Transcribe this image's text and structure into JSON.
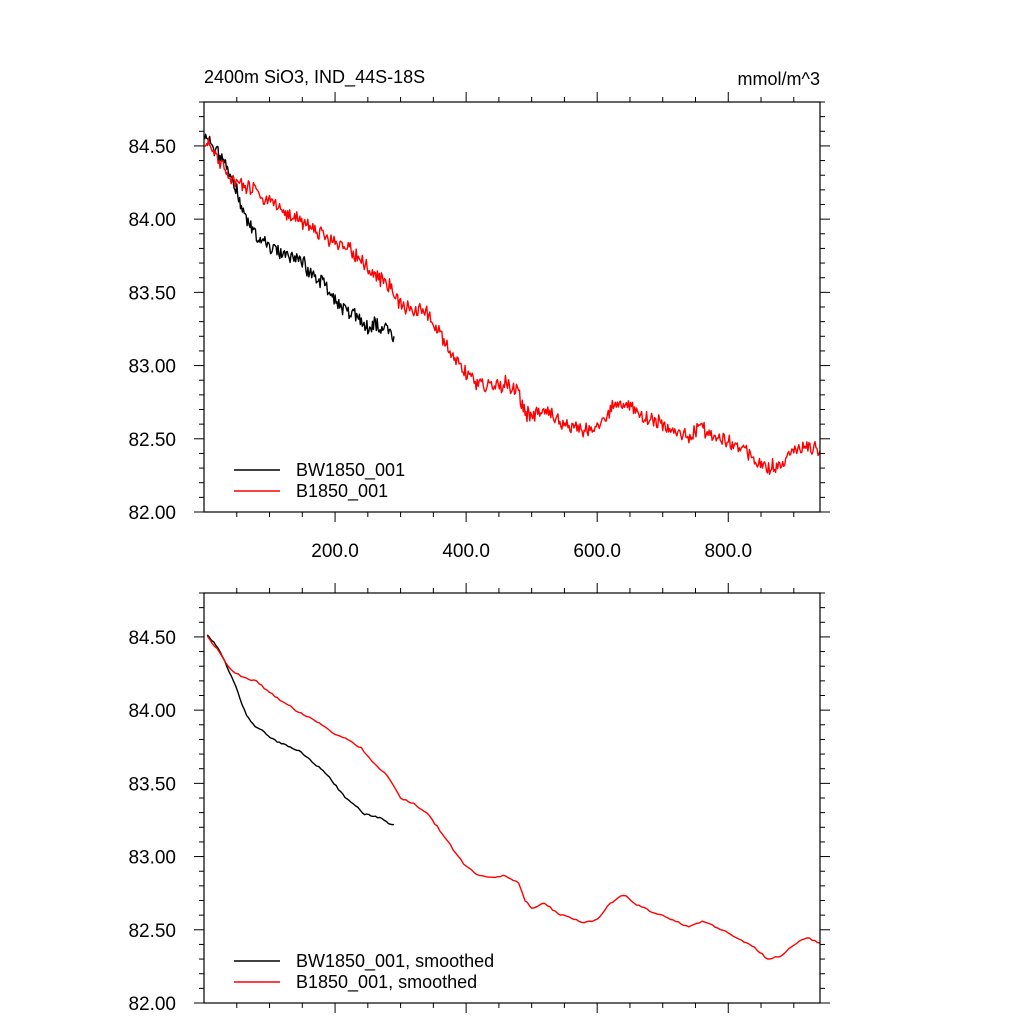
{
  "chart_data": [
    {
      "type": "line",
      "title": "2400m SiO3, IND_44S-18S",
      "units": "mmol/m^3",
      "xlabel": "",
      "ylabel": "",
      "xlim": [
        0,
        940
      ],
      "ylim": [
        82.0,
        84.8
      ],
      "xticks": [
        200,
        400,
        600,
        800
      ],
      "xtick_labels": [
        "200.0",
        "400.0",
        "600.0",
        "800.0"
      ],
      "yticks": [
        82.0,
        82.5,
        83.0,
        83.5,
        84.0,
        84.5
      ],
      "ytick_labels": [
        "82.00",
        "82.50",
        "83.00",
        "83.50",
        "84.00",
        "84.50"
      ],
      "grid": false,
      "legend_position": "bottom-left",
      "series": [
        {
          "name": "BW1850_001",
          "color": "#000000",
          "x": [
            1,
            10,
            20,
            30,
            40,
            50,
            60,
            70,
            80,
            90,
            100,
            110,
            120,
            130,
            140,
            150,
            160,
            170,
            180,
            190,
            200,
            210,
            220,
            230,
            240,
            250,
            260,
            270,
            280,
            290
          ],
          "y": [
            84.58,
            84.52,
            84.45,
            84.4,
            84.3,
            84.2,
            84.05,
            83.95,
            83.88,
            83.86,
            83.82,
            83.78,
            83.76,
            83.74,
            83.73,
            83.7,
            83.65,
            83.62,
            83.57,
            83.52,
            83.45,
            83.41,
            83.37,
            83.34,
            83.3,
            83.27,
            83.3,
            83.24,
            83.25,
            83.2
          ]
        },
        {
          "name": "B1850_001",
          "color": "#ff0000",
          "x": [
            1,
            20,
            40,
            60,
            80,
            100,
            120,
            140,
            160,
            180,
            200,
            220,
            240,
            260,
            280,
            300,
            320,
            340,
            360,
            380,
            400,
            420,
            440,
            460,
            480,
            490,
            500,
            520,
            540,
            560,
            580,
            600,
            620,
            640,
            660,
            680,
            700,
            720,
            740,
            760,
            780,
            800,
            820,
            840,
            860,
            880,
            900,
            920,
            940
          ],
          "y": [
            84.55,
            84.42,
            84.28,
            84.22,
            84.2,
            84.12,
            84.06,
            84.0,
            83.95,
            83.9,
            83.83,
            83.8,
            83.73,
            83.62,
            83.56,
            83.42,
            83.38,
            83.36,
            83.22,
            83.07,
            82.95,
            82.87,
            82.86,
            82.88,
            82.82,
            82.68,
            82.65,
            82.7,
            82.62,
            82.58,
            82.55,
            82.57,
            82.7,
            82.75,
            82.68,
            82.63,
            82.6,
            82.55,
            82.52,
            82.57,
            82.52,
            82.48,
            82.42,
            82.38,
            82.3,
            82.33,
            82.42,
            82.46,
            82.42
          ]
        }
      ]
    },
    {
      "type": "line",
      "title": "",
      "xlabel": "",
      "ylabel": "",
      "xlim": [
        0,
        940
      ],
      "ylim": [
        82.0,
        84.8
      ],
      "xticks": [
        200,
        400,
        600,
        800
      ],
      "yticks": [
        82.0,
        82.5,
        83.0,
        83.5,
        84.0,
        84.5
      ],
      "ytick_labels": [
        "82.00",
        "82.50",
        "83.00",
        "83.50",
        "84.00",
        "84.50"
      ],
      "grid": false,
      "legend_position": "bottom-left",
      "series": [
        {
          "name": "BW1850_001, smoothed",
          "color": "#000000",
          "x": [
            5,
            15,
            25,
            35,
            45,
            55,
            65,
            75,
            85,
            95,
            105,
            115,
            125,
            135,
            145,
            155,
            165,
            175,
            185,
            195,
            205,
            215,
            225,
            235,
            245,
            255,
            265,
            275,
            285,
            290
          ],
          "y": [
            84.52,
            84.46,
            84.4,
            84.3,
            84.2,
            84.08,
            83.96,
            83.9,
            83.87,
            83.84,
            83.8,
            83.78,
            83.76,
            83.74,
            83.72,
            83.69,
            83.65,
            83.61,
            83.57,
            83.52,
            83.46,
            83.41,
            83.37,
            83.33,
            83.29,
            83.28,
            83.27,
            83.25,
            83.22,
            83.22
          ]
        },
        {
          "name": "B1850_001, smoothed",
          "color": "#ff0000",
          "x": [
            5,
            20,
            40,
            60,
            80,
            100,
            120,
            140,
            160,
            180,
            200,
            220,
            240,
            260,
            280,
            300,
            320,
            340,
            360,
            380,
            400,
            420,
            440,
            460,
            480,
            490,
            500,
            520,
            540,
            560,
            580,
            600,
            620,
            640,
            660,
            680,
            700,
            720,
            740,
            760,
            780,
            800,
            820,
            840,
            860,
            880,
            900,
            920,
            940
          ],
          "y": [
            84.5,
            84.42,
            84.28,
            84.22,
            84.2,
            84.12,
            84.06,
            84.0,
            83.95,
            83.9,
            83.83,
            83.8,
            83.74,
            83.63,
            83.55,
            83.4,
            83.36,
            83.3,
            83.18,
            83.05,
            82.93,
            82.87,
            82.86,
            82.87,
            82.82,
            82.7,
            82.65,
            82.68,
            82.61,
            82.58,
            82.55,
            82.57,
            82.68,
            82.74,
            82.67,
            82.63,
            82.6,
            82.56,
            82.52,
            82.56,
            82.52,
            82.48,
            82.43,
            82.38,
            82.3,
            82.32,
            82.4,
            82.45,
            82.41
          ]
        }
      ]
    }
  ]
}
